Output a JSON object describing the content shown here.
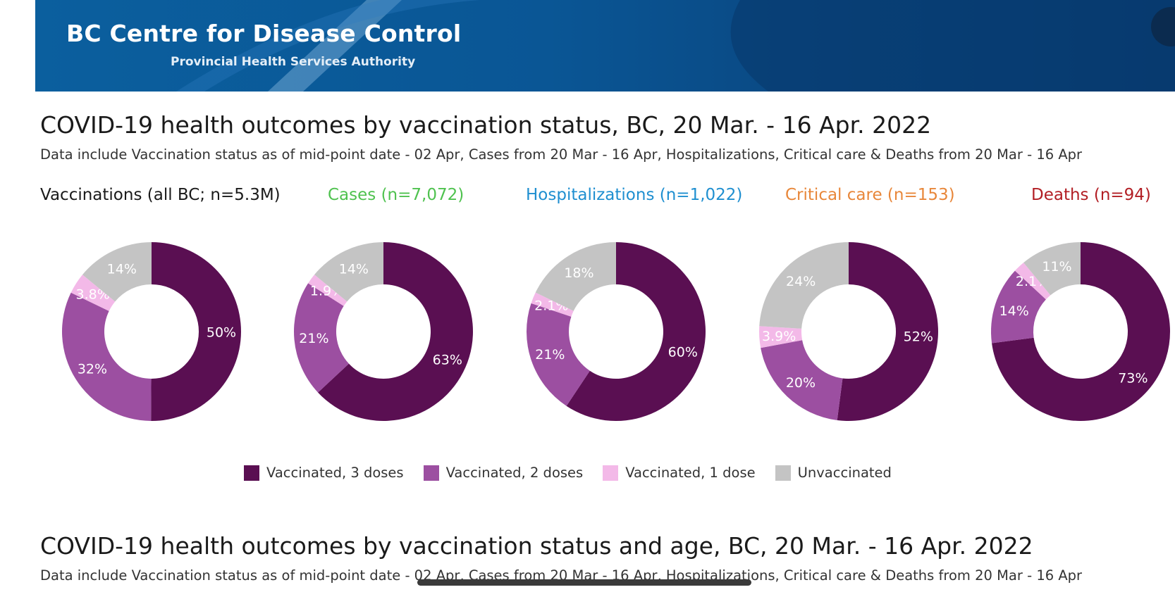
{
  "header": {
    "brand_title": "BC Centre for Disease Control",
    "brand_subtitle": "Provincial Health Services Authority"
  },
  "section1": {
    "title": "COVID-19 health outcomes by vaccination status, BC,  20 Mar. - 16 Apr. 2022",
    "note": "Data include Vaccination status as of mid-point date - 02 Apr, Cases  from  20 Mar - 16 Apr, Hospitalizations, Critical care & Deaths from 20 Mar - 16 Apr"
  },
  "section2": {
    "title": "COVID-19 health outcomes by vaccination status and age, BC,  20 Mar. - 16 Apr. 2022",
    "note": "Data include Vaccination status as of mid-point date - 02 Apr, Cases  from  20 Mar - 16 Apr, Hospitalizations, Critical care & Deaths from 20 Mar - 16 Apr"
  },
  "colors": {
    "dose3": "#5a0f52",
    "dose2": "#9c4fa1",
    "dose1": "#f3b9e8",
    "unvaccinated": "#c4c4c4",
    "title_vaccinations": "#1a1a1a",
    "title_cases": "#4fc24f",
    "title_hospitalizations": "#1f8fd0",
    "title_critical": "#e8873a",
    "title_deaths": "#b21e24"
  },
  "chart_data": [
    {
      "type": "pie",
      "title": "Vaccinations (all BC; n=5.3M)",
      "categories": [
        "Vaccinated, 3 doses",
        "Vaccinated, 2 doses",
        "Vaccinated, 1 dose",
        "Unvaccinated"
      ],
      "values": [
        50,
        32,
        3.8,
        14
      ],
      "labels": [
        "50%",
        "32%",
        "3.8%",
        "14%"
      ]
    },
    {
      "type": "pie",
      "title": "Cases (n=7,072)",
      "categories": [
        "Vaccinated, 3 doses",
        "Vaccinated, 2 doses",
        "Vaccinated, 1 dose",
        "Unvaccinated"
      ],
      "values": [
        63,
        21,
        1.9,
        14
      ],
      "labels": [
        "63%",
        "21%",
        "1.9%",
        "14%"
      ]
    },
    {
      "type": "pie",
      "title": "Hospitalizations (n=1,022)",
      "categories": [
        "Vaccinated, 3 doses",
        "Vaccinated, 2 doses",
        "Vaccinated, 1 dose",
        "Unvaccinated"
      ],
      "values": [
        60,
        21,
        2.1,
        18
      ],
      "labels": [
        "60%",
        "21%",
        "2.1%",
        "18%"
      ]
    },
    {
      "type": "pie",
      "title": "Critical care (n=153)",
      "categories": [
        "Vaccinated, 3 doses",
        "Vaccinated, 2 doses",
        "Vaccinated, 1 dose",
        "Unvaccinated"
      ],
      "values": [
        52,
        20,
        3.9,
        24
      ],
      "labels": [
        "52%",
        "20%",
        "3.9%",
        "24%"
      ]
    },
    {
      "type": "pie",
      "title": "Deaths (n=94)",
      "categories": [
        "Vaccinated, 3 doses",
        "Vaccinated, 2 doses",
        "Vaccinated, 1 dose",
        "Unvaccinated"
      ],
      "values": [
        73,
        14,
        2.1,
        11
      ],
      "labels": [
        "73%",
        "14%",
        "2.1%",
        "11%"
      ]
    }
  ],
  "legend": {
    "dose3": "Vaccinated, 3 doses",
    "dose2": "Vaccinated, 2 doses",
    "dose1": "Vaccinated, 1 dose",
    "unvaccinated": "Unvaccinated"
  }
}
